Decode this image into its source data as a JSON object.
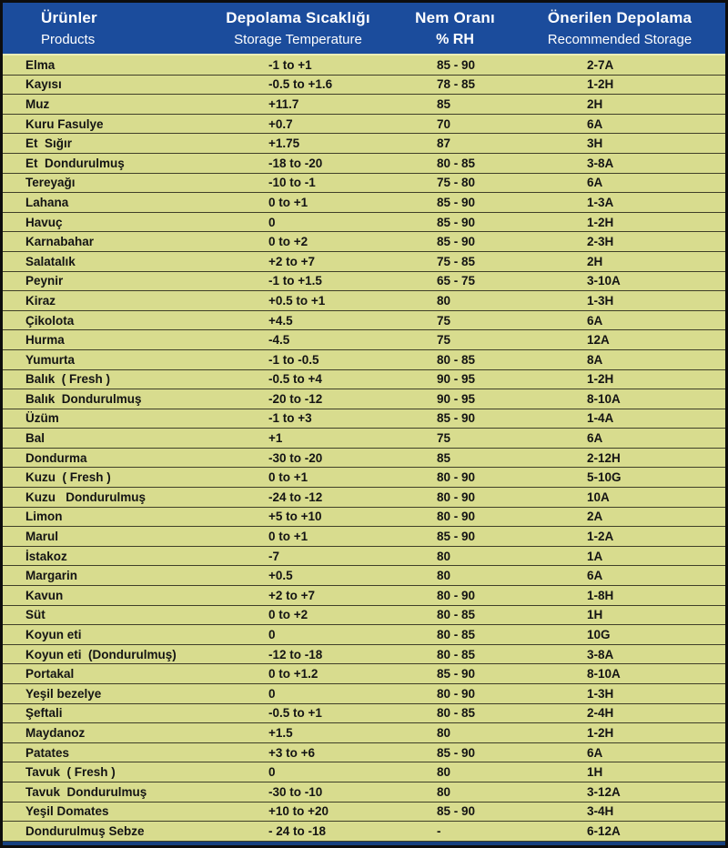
{
  "colors": {
    "header_bg": "#1b4c9c",
    "body_bg": "#d8dc8e",
    "grid_line": "#3f3f28",
    "header_text": "#ffffff",
    "body_text": "#141414",
    "outer_border": "#0d0d0d",
    "bottom_strip": "#16407f"
  },
  "header": {
    "col1": {
      "line1": "Ürünler",
      "line2": "Products"
    },
    "col2": {
      "line1": "Depolama Sıcaklığı",
      "line2": "Storage Temperature"
    },
    "col3": {
      "line1": "Nem Oranı",
      "line2": "% RH"
    },
    "col4": {
      "line1": "Önerilen Depolama",
      "line2": "Recommended Storage"
    }
  },
  "chart_data": {
    "type": "table",
    "title": "Ürünler / Products storage conditions table",
    "columns": [
      "Ürünler / Products",
      "Depolama Sıcaklığı / Storage Temperature",
      "Nem Oranı / % RH",
      "Önerilen Depolama / Recommended Storage"
    ],
    "rows": [
      {
        "product": "Elma",
        "temp": "-1 to +1",
        "rh": "85 - 90",
        "storage": "2-7A"
      },
      {
        "product": "Kayısı",
        "temp": "-0.5 to +1.6",
        "rh": "78 - 85",
        "storage": "1-2H"
      },
      {
        "product": "Muz",
        "temp": "+11.7",
        "rh": "85",
        "storage": "2H"
      },
      {
        "product": "Kuru Fasulye",
        "temp": "+0.7",
        "rh": "70",
        "storage": "6A"
      },
      {
        "product": "Et  Sığır",
        "temp": "+1.75",
        "rh": "87",
        "storage": "3H"
      },
      {
        "product": "Et  Dondurulmuş",
        "temp": "-18 to -20",
        "rh": "80 - 85",
        "storage": "3-8A"
      },
      {
        "product": "Tereyağı",
        "temp": "-10 to -1",
        "rh": "75 - 80",
        "storage": "6A"
      },
      {
        "product": "Lahana",
        "temp": "0 to +1",
        "rh": "85 - 90",
        "storage": "1-3A"
      },
      {
        "product": "Havuç",
        "temp": "0",
        "rh": "85 - 90",
        "storage": "1-2H"
      },
      {
        "product": "Karnabahar",
        "temp": "0 to +2",
        "rh": "85 - 90",
        "storage": "2-3H"
      },
      {
        "product": "Salatalık",
        "temp": "+2 to +7",
        "rh": "75 - 85",
        "storage": "2H"
      },
      {
        "product": "Peynir",
        "temp": "-1 to +1.5",
        "rh": "65 - 75",
        "storage": "3-10A"
      },
      {
        "product": "Kiraz",
        "temp": "+0.5 to +1",
        "rh": "80",
        "storage": "1-3H"
      },
      {
        "product": "Çikolota",
        "temp": "+4.5",
        "rh": "75",
        "storage": "6A"
      },
      {
        "product": "Hurma",
        "temp": "-4.5",
        "rh": "75",
        "storage": "12A"
      },
      {
        "product": "Yumurta",
        "temp": "-1 to -0.5",
        "rh": "80 - 85",
        "storage": "8A"
      },
      {
        "product": "Balık  ( Fresh )",
        "temp": "-0.5 to +4",
        "rh": "90 - 95",
        "storage": "1-2H"
      },
      {
        "product": "Balık  Dondurulmuş",
        "temp": "-20 to -12",
        "rh": "90 - 95",
        "storage": "8-10A"
      },
      {
        "product": "Üzüm",
        "temp": "-1 to +3",
        "rh": "85 - 90",
        "storage": "1-4A"
      },
      {
        "product": "Bal",
        "temp": "+1",
        "rh": "75",
        "storage": "6A"
      },
      {
        "product": "Dondurma",
        "temp": "-30 to -20",
        "rh": "85",
        "storage": "2-12H"
      },
      {
        "product": "Kuzu  ( Fresh )",
        "temp": "0 to +1",
        "rh": "80 - 90",
        "storage": "5-10G"
      },
      {
        "product": "Kuzu   Dondurulmuş",
        "temp": "-24 to -12",
        "rh": "80 - 90",
        "storage": "10A"
      },
      {
        "product": "Limon",
        "temp": "+5 to +10",
        "rh": "80 - 90",
        "storage": "2A"
      },
      {
        "product": "Marul",
        "temp": "0 to +1",
        "rh": "85 - 90",
        "storage": "1-2A"
      },
      {
        "product": "İstakoz",
        "temp": "-7",
        "rh": "80",
        "storage": "1A"
      },
      {
        "product": "Margarin",
        "temp": "+0.5",
        "rh": "80",
        "storage": "6A"
      },
      {
        "product": "Kavun",
        "temp": "+2 to +7",
        "rh": "80 - 90",
        "storage": "1-8H"
      },
      {
        "product": "Süt",
        "temp": "0 to +2",
        "rh": "80 - 85",
        "storage": "1H"
      },
      {
        "product": "Koyun eti",
        "temp": "0",
        "rh": "80 - 85",
        "storage": "10G"
      },
      {
        "product": "Koyun eti  (Dondurulmuş)",
        "temp": "-12 to -18",
        "rh": "80 - 85",
        "storage": "3-8A"
      },
      {
        "product": "Portakal",
        "temp": "0 to +1.2",
        "rh": "85 - 90",
        "storage": "8-10A"
      },
      {
        "product": "Yeşil bezelye",
        "temp": "0",
        "rh": "80 - 90",
        "storage": "1-3H"
      },
      {
        "product": "Şeftali",
        "temp": "-0.5 to +1",
        "rh": "80 - 85",
        "storage": "2-4H"
      },
      {
        "product": "Maydanoz",
        "temp": "+1.5",
        "rh": "80",
        "storage": "1-2H"
      },
      {
        "product": "Patates",
        "temp": "+3 to +6",
        "rh": "85 - 90",
        "storage": "6A"
      },
      {
        "product": "Tavuk  ( Fresh )",
        "temp": "0",
        "rh": "80",
        "storage": "1H"
      },
      {
        "product": "Tavuk  Dondurulmuş",
        "temp": "-30 to -10",
        "rh": "80",
        "storage": "3-12A"
      },
      {
        "product": "Yeşil Domates",
        "temp": "+10 to +20",
        "rh": "85 - 90",
        "storage": "3-4H"
      },
      {
        "product": "Dondurulmuş Sebze",
        "temp": "- 24 to -18",
        "rh": "-",
        "storage": "6-12A"
      }
    ]
  }
}
